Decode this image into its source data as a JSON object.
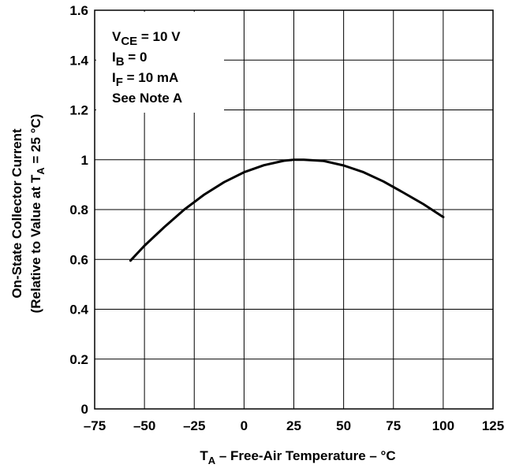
{
  "chart_data": {
    "type": "line",
    "title": "",
    "xlabel": {
      "main": "T",
      "sub": "A",
      "rest": " – Free-Air Temperature – °C"
    },
    "ylabel": {
      "line1": "On-State Collector Current",
      "line2_pre": "(Relative to Value at  T",
      "line2_sub": "A",
      "line2_post": " = 25 °C)"
    },
    "xlim": [
      -75,
      125
    ],
    "ylim": [
      0,
      1.6
    ],
    "xticks": [
      -75,
      -50,
      -25,
      0,
      25,
      50,
      75,
      100,
      125
    ],
    "xtick_labels": [
      "–75",
      "–50",
      "–25",
      "0",
      "25",
      "50",
      "75",
      "100",
      "125"
    ],
    "yticks": [
      0,
      0.2,
      0.4,
      0.6,
      0.8,
      1,
      1.2,
      1.4,
      1.6
    ],
    "ytick_labels": [
      "0",
      "0.2",
      "0.4",
      "0.6",
      "0.8",
      "1",
      "1.2",
      "1.4",
      "1.6"
    ],
    "grid": true,
    "annotations": [
      {
        "main": "V",
        "sub": "CE",
        "rest": " = 10 V"
      },
      {
        "main": "I",
        "sub": "B",
        "rest": " = 0"
      },
      {
        "main": "I",
        "sub": "F",
        "rest": " = 10 mA"
      },
      {
        "main": "See Note A",
        "sub": "",
        "rest": ""
      }
    ],
    "series": [
      {
        "x": [
          -57,
          -50,
          -40,
          -30,
          -20,
          -10,
          0,
          10,
          20,
          25,
          30,
          40,
          50,
          60,
          70,
          80,
          90,
          100
        ],
        "y": [
          0.595,
          0.655,
          0.73,
          0.8,
          0.86,
          0.91,
          0.95,
          0.978,
          0.996,
          1.0,
          1.0,
          0.995,
          0.977,
          0.95,
          0.913,
          0.868,
          0.822,
          0.77
        ]
      }
    ]
  }
}
